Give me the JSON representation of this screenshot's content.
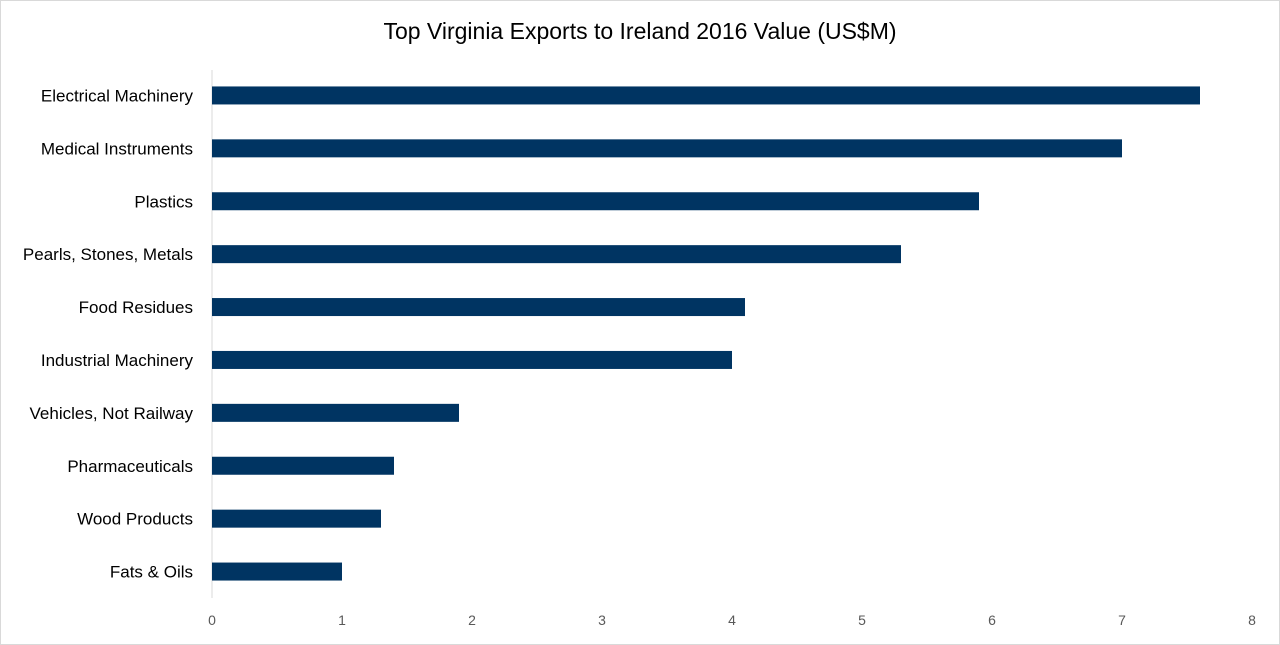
{
  "chart_data": {
    "type": "bar",
    "orientation": "horizontal",
    "title": "Top Virginia Exports to Ireland 2016 Value (US$M)",
    "categories": [
      "Electrical Machinery",
      "Medical Instruments",
      "Plastics",
      "Pearls, Stones, Metals",
      "Food Residues",
      "Industrial Machinery",
      "Vehicles, Not Railway",
      "Pharmaceuticals",
      "Wood Products",
      "Fats & Oils"
    ],
    "values": [
      7.6,
      7.0,
      5.9,
      5.3,
      4.1,
      4.0,
      1.9,
      1.4,
      1.3,
      1.0
    ],
    "xlim": [
      0,
      8
    ],
    "xticks": [
      "0",
      "1",
      "2",
      "3",
      "4",
      "5",
      "6",
      "7",
      "8"
    ],
    "grid": false,
    "bar_color": "#003462"
  }
}
